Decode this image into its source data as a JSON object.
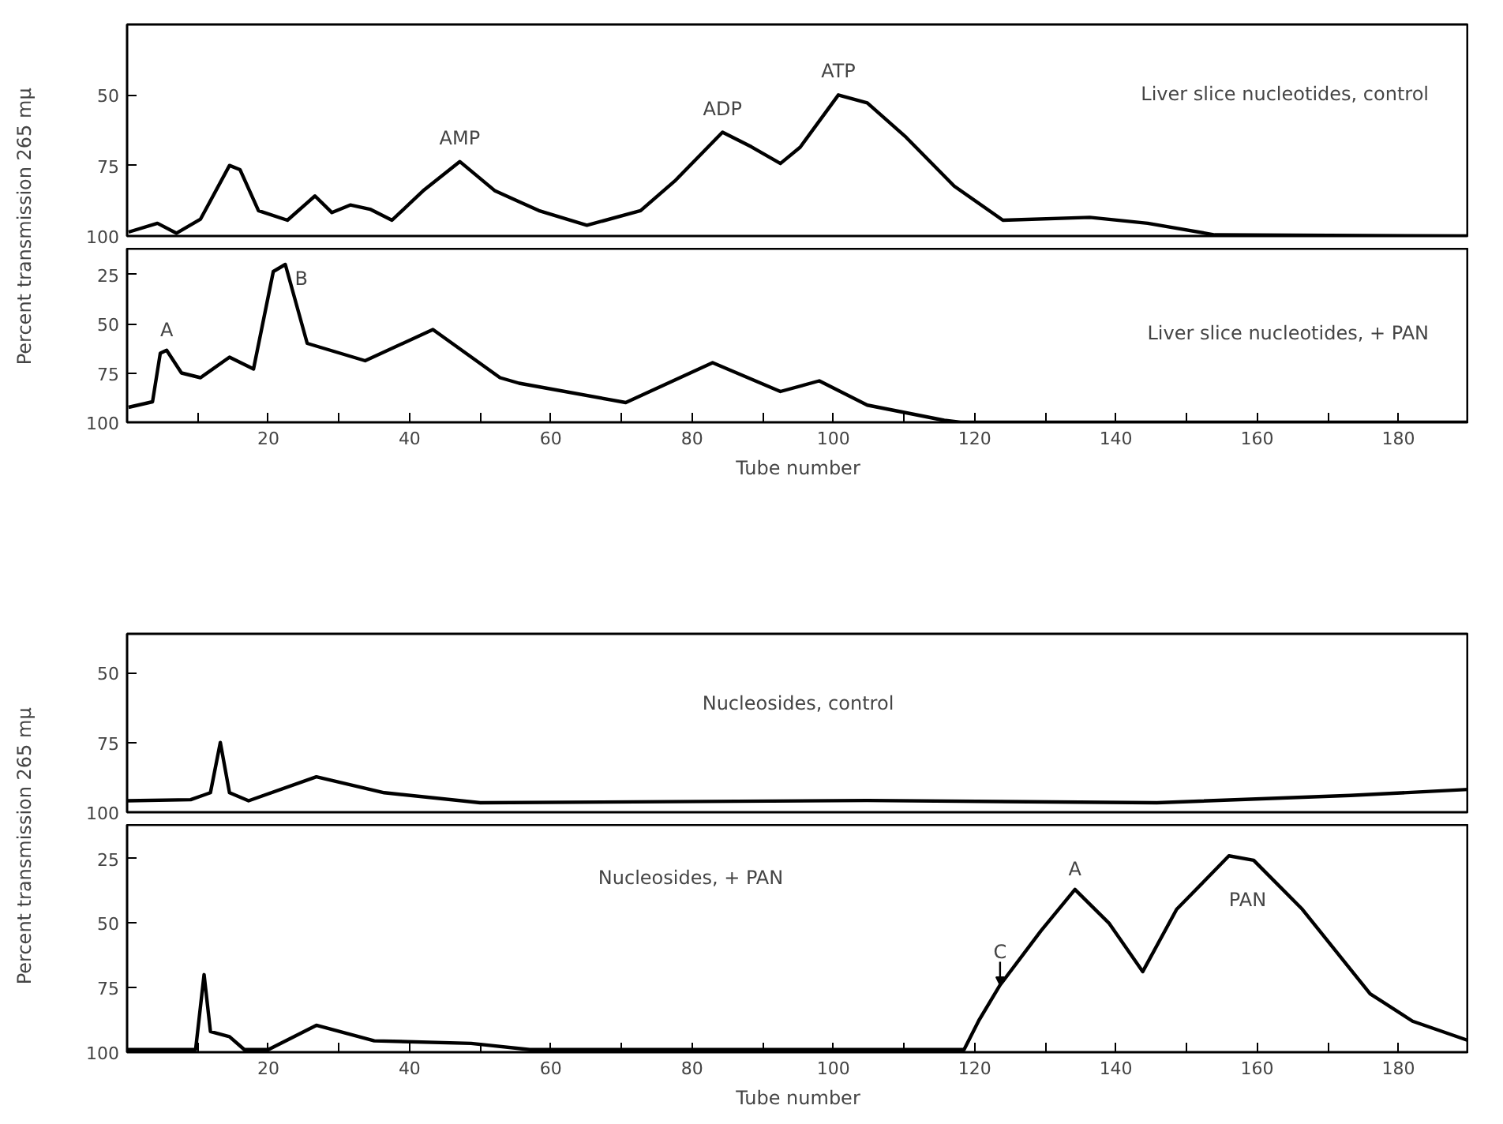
{
  "chart_data": [
    {
      "type": "line",
      "title": "Liver slice nucleotides, control",
      "tick_labels": "y",
      "xlim": [
        0,
        190
      ],
      "ylim": [
        100,
        25
      ],
      "yticks": [
        50,
        75,
        100
      ],
      "x": [
        0.2,
        4.3,
        7,
        10.4,
        14.5,
        16,
        18.6,
        22.7,
        26.6,
        29,
        31.6,
        34.4,
        37.5,
        41.9,
        47.1,
        52.1,
        58.3,
        65.1,
        72.7,
        77.5,
        84.3,
        88.4,
        92.5,
        95.3,
        100.7,
        104.8,
        110.3,
        117.1,
        124,
        136.3,
        144.5,
        154,
        190
      ],
      "series": [
        {
          "color": "#000000",
          "values": [
            98.6,
            95.5,
            99,
            94,
            75,
            76.5,
            91,
            94.4,
            85.8,
            91.7,
            89,
            90.5,
            94.4,
            84,
            73.6,
            84,
            91,
            96.2,
            91,
            80.6,
            63.2,
            68.4,
            74.3,
            68.5,
            50,
            52.8,
            65,
            82.3,
            94.4,
            93.4,
            95.5,
            99.6,
            100
          ]
        }
      ],
      "annotations": [
        {
          "text": "AMP",
          "x": 47.1,
          "y": 73.6
        },
        {
          "text": "ADP",
          "x": 84.3,
          "y": 63.2
        },
        {
          "text": "ATP",
          "x": 100.7,
          "y": 50
        }
      ]
    },
    {
      "type": "line",
      "title": "Liver slice nucleotides, + PAN",
      "xlabel": "Tube number",
      "ylabel": "Percent transmission  265 mμ",
      "xlim": [
        0,
        190
      ],
      "ylim": [
        100,
        12
      ],
      "yticks": [
        25,
        50,
        75,
        100
      ],
      "xticks": [
        {
          "value": 10,
          "label": null
        },
        20,
        {
          "value": 30,
          "label": null
        },
        40,
        {
          "value": 50,
          "label": null
        },
        60,
        {
          "value": 70,
          "label": null
        },
        80,
        {
          "value": 90,
          "label": null
        },
        100,
        {
          "value": 110,
          "label": null
        },
        120,
        {
          "value": 130,
          "label": null
        },
        140,
        {
          "value": 150,
          "label": null
        },
        160,
        {
          "value": 170,
          "label": null
        },
        180
      ],
      "x": [
        0.2,
        3.6,
        4.7,
        5.6,
        7.7,
        10.4,
        14.5,
        17.9,
        20.7,
        22.4,
        25.5,
        33.7,
        43.3,
        52.8,
        55.5,
        70.6,
        82.9,
        92.5,
        98,
        104.8,
        115.7,
        118,
        190
      ],
      "series": [
        {
          "color": "#000000",
          "values": [
            92.4,
            89.6,
            65,
            63.5,
            75,
            77.4,
            67,
            73,
            23.6,
            20,
            60,
            68.8,
            53,
            77.4,
            80.2,
            90,
            69.8,
            84.4,
            79,
            91.3,
            99,
            100,
            100
          ]
        }
      ],
      "annotations": [
        {
          "text": "A",
          "x": 5.6,
          "y": 63.5
        },
        {
          "text": "B",
          "x": 22.4,
          "y": 20
        }
      ]
    },
    {
      "type": "line",
      "title": "Nucleosides, control",
      "tick_labels": "y",
      "xlim": [
        0,
        190
      ],
      "ylim": [
        100,
        36
      ],
      "yticks": [
        50,
        75,
        100
      ],
      "x": [
        0,
        9,
        11.8,
        13.2,
        14.5,
        17.2,
        26.8,
        36.4,
        50,
        104.8,
        145.8,
        173.2,
        190
      ],
      "series": [
        {
          "color": "#000000",
          "values": [
            95.9,
            95.5,
            93,
            75,
            93,
            95.9,
            87.3,
            93,
            96.6,
            95.8,
            96.6,
            94,
            91.8
          ]
        }
      ]
    },
    {
      "type": "line",
      "title": "Nucleosides, + PAN",
      "xlabel": "Tube number",
      "ylabel": "Percent transmission  265 mμ",
      "xlim": [
        0,
        190
      ],
      "ylim": [
        100,
        12
      ],
      "yticks": [
        25,
        50,
        75,
        100
      ],
      "xticks": [
        {
          "value": 10,
          "label": null
        },
        20,
        {
          "value": 30,
          "label": null
        },
        40,
        {
          "value": 50,
          "label": null
        },
        60,
        {
          "value": 70,
          "label": null
        },
        80,
        {
          "value": 90,
          "label": null
        },
        100,
        {
          "value": 110,
          "label": null
        },
        120,
        {
          "value": 130,
          "label": null
        },
        140,
        {
          "value": 150,
          "label": null
        },
        160,
        {
          "value": 170,
          "label": null
        },
        180
      ],
      "x": [
        0,
        9.7,
        10.9,
        11.8,
        14.5,
        16.6,
        20,
        26.8,
        35,
        48.7,
        57,
        118.5,
        120.6,
        123.6,
        129.4,
        134.2,
        139,
        143.8,
        148.6,
        156,
        159.5,
        166.4,
        176,
        182,
        190
      ],
      "series": [
        {
          "color": "#000000",
          "values": [
            99,
            99,
            70,
            92,
            94,
            99,
            99,
            89.6,
            95.6,
            96.6,
            99,
            99,
            87.7,
            74,
            53,
            37,
            50,
            68.8,
            44.7,
            24,
            25.7,
            44.7,
            77.4,
            88,
            95.6
          ]
        }
      ],
      "annotations": [
        {
          "text": "C",
          "x": 123.6,
          "y": 74
        },
        {
          "text": "A",
          "x": 134.2,
          "y": 37
        },
        "PAN"
      ]
    }
  ]
}
